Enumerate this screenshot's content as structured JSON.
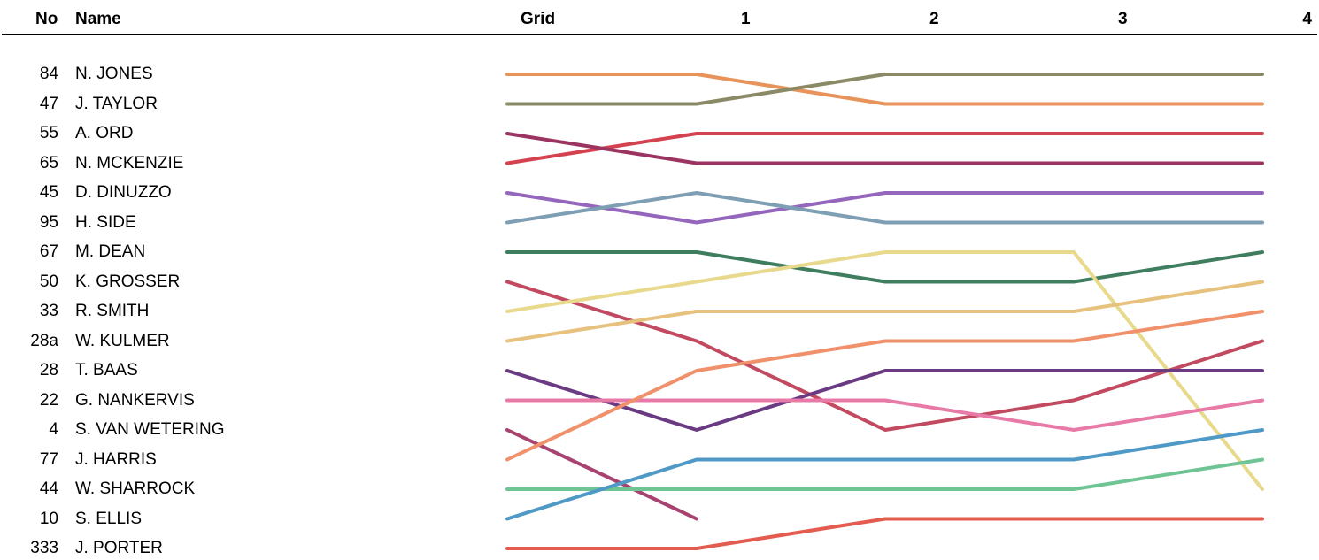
{
  "header": {
    "no_label": "No",
    "name_label": "Name"
  },
  "chart_data": {
    "type": "line",
    "subtype": "position-chart",
    "x": [
      "Grid",
      "1",
      "2",
      "3",
      "4"
    ],
    "y_inverted": true,
    "ylim": [
      1,
      17
    ],
    "grid": false,
    "legend": "none",
    "riders": [
      {
        "no": "84",
        "name": "N. JONES",
        "color": "#e8935a",
        "positions": [
          1,
          1,
          2,
          2,
          2
        ]
      },
      {
        "no": "47",
        "name": "J. TAYLOR",
        "color": "#8a8a66",
        "positions": [
          2,
          2,
          1,
          1,
          1
        ]
      },
      {
        "no": "55",
        "name": "A. ORD",
        "color": "#d4424f",
        "positions": [
          4,
          3,
          3,
          3,
          3
        ]
      },
      {
        "no": "65",
        "name": "N. MCKENZIE",
        "color": "#9b3460",
        "positions": [
          3,
          4,
          4,
          4,
          4
        ]
      },
      {
        "no": "45",
        "name": "D. DINUZZO",
        "color": "#9467bd",
        "positions": [
          5,
          6,
          5,
          5,
          5
        ]
      },
      {
        "no": "95",
        "name": "H. SIDE",
        "color": "#7e9fb3",
        "positions": [
          6,
          5,
          6,
          6,
          6
        ]
      },
      {
        "no": "67",
        "name": "M. DEAN",
        "color": "#3f7d5f",
        "positions": [
          7,
          7,
          8,
          8,
          7
        ]
      },
      {
        "no": "50",
        "name": "K. GROSSER",
        "color": "#c24a60",
        "positions": [
          8,
          10,
          13,
          12,
          10
        ]
      },
      {
        "no": "33",
        "name": "R. SMITH",
        "color": "#e8d98c",
        "positions": [
          9,
          8,
          7,
          7,
          15
        ]
      },
      {
        "no": "28a",
        "name": "W. KULMER",
        "color": "#e6c27e",
        "positions": [
          10,
          9,
          9,
          9,
          8
        ]
      },
      {
        "no": "28",
        "name": "T. BAAS",
        "color": "#6a3a82",
        "positions": [
          11,
          13,
          11,
          11,
          11
        ]
      },
      {
        "no": "22",
        "name": "G. NANKERVIS",
        "color": "#e87aa8",
        "positions": [
          12,
          12,
          12,
          13,
          12
        ]
      },
      {
        "no": "4",
        "name": "S. VAN WETERING",
        "color": "#a8436f",
        "positions": [
          13,
          16,
          null,
          null,
          null
        ]
      },
      {
        "no": "77",
        "name": "J. HARRIS",
        "color": "#f0916b",
        "positions": [
          14,
          11,
          10,
          10,
          9
        ]
      },
      {
        "no": "44",
        "name": "W. SHARROCK",
        "color": "#6fc494",
        "positions": [
          15,
          15,
          15,
          15,
          14
        ]
      },
      {
        "no": "10",
        "name": "S. ELLIS",
        "color": "#4f99c6",
        "positions": [
          16,
          14,
          14,
          14,
          13
        ]
      },
      {
        "no": "333",
        "name": "J. PORTER",
        "color": "#e35c4f",
        "positions": [
          17,
          17,
          16,
          16,
          16
        ]
      }
    ]
  }
}
